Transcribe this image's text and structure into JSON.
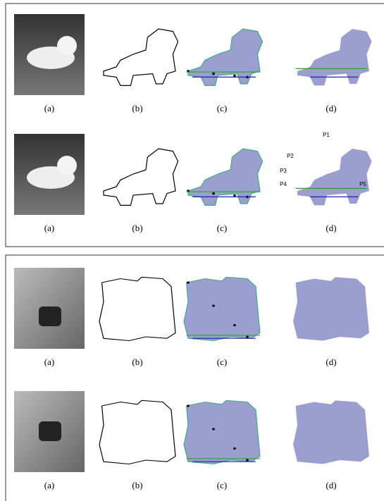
{
  "figure": {
    "panels": [
      {
        "rows": [
          {
            "captions": [
              "(a)",
              "(b)",
              "(c)",
              "(d)"
            ]
          },
          {
            "captions": [
              "(a)",
              "(b)",
              "(c)",
              "(d)"
            ],
            "point_labels": [
              "P1",
              "P2",
              "P3",
              "P4",
              "P5"
            ]
          }
        ]
      },
      {
        "rows": [
          {
            "captions": [
              "(a)",
              "(b)",
              "(c)",
              "(d)"
            ]
          },
          {
            "captions": [
              "(a)",
              "(b)",
              "(c)",
              "(d)"
            ]
          }
        ]
      }
    ]
  }
}
